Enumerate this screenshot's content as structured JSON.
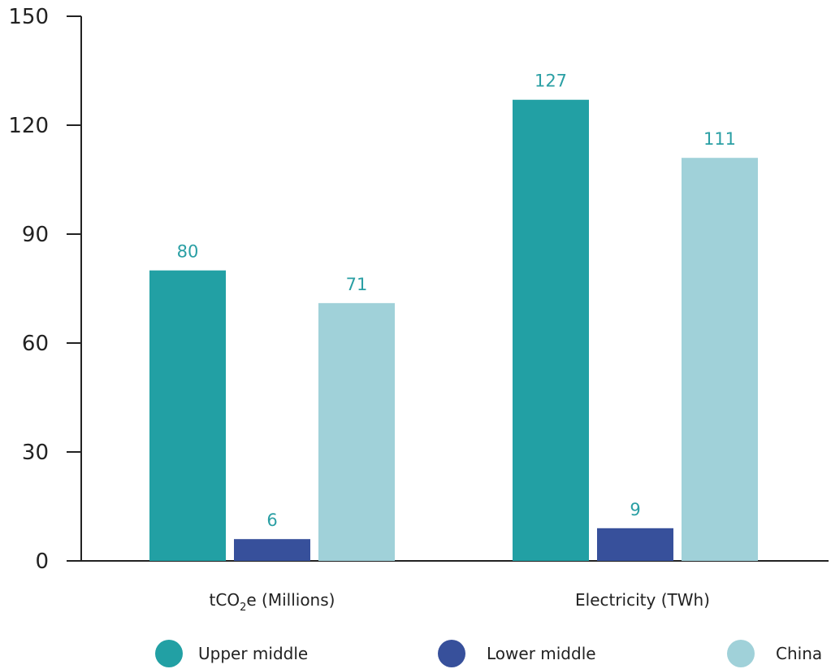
{
  "chart_data": {
    "type": "bar",
    "title": "",
    "xlabel": "",
    "ylabel": "",
    "ylim": [
      0,
      150
    ],
    "yticks": [
      0,
      30,
      60,
      90,
      120,
      150
    ],
    "grid": false,
    "legend_position": "bottom",
    "categories": [
      "tCO2e (Millions)",
      "Electricity (TWh)"
    ],
    "category_parts": [
      {
        "pre": "tCO",
        "sub": "2",
        "post": "e (Millions)"
      },
      {
        "pre": "Electricity (TWh)",
        "sub": "",
        "post": ""
      }
    ],
    "series": [
      {
        "name": "Upper middle",
        "color": "#22a0a4",
        "values": [
          80,
          127
        ]
      },
      {
        "name": "Lower middle",
        "color": "#37509b",
        "values": [
          6,
          9
        ]
      },
      {
        "name": "China",
        "color": "#a0d1d9",
        "values": [
          71,
          111
        ]
      }
    ],
    "data_label_color": "#2a9fa4",
    "axis_color": "#222222"
  }
}
